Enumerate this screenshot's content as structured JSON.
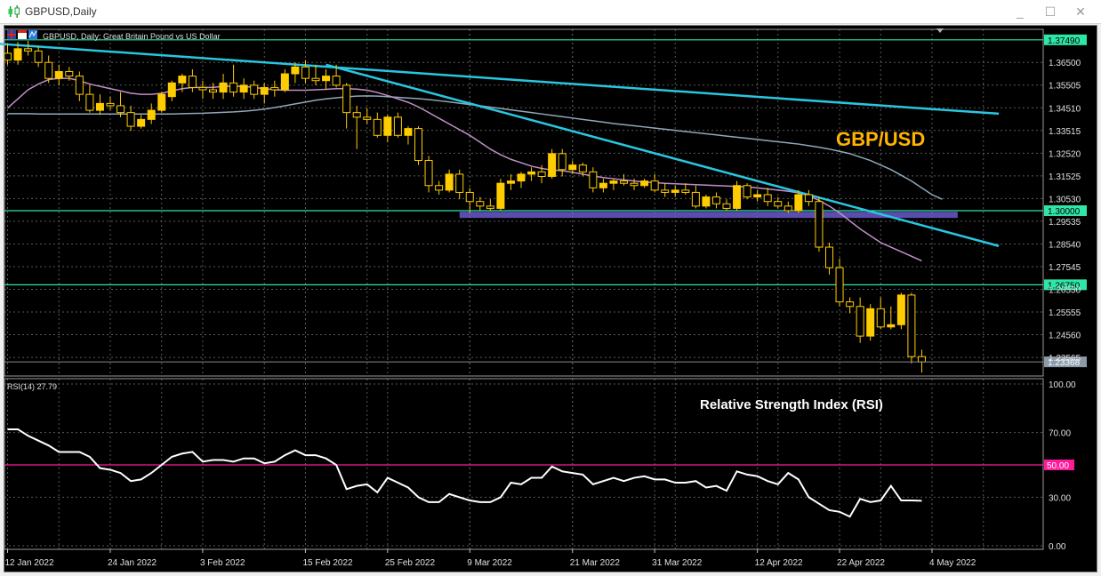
{
  "window": {
    "title": "GBPUSD,Daily",
    "controls": {
      "minimize": "_",
      "maximize": "☐",
      "close": "✕"
    }
  },
  "colors": {
    "background": "#000000",
    "grid": "#5a5a5a",
    "candle": "#ffcc00",
    "trendline": "#29c6e0",
    "hline": "#2ee6a6",
    "ma_fast": "#c090c8",
    "ma_slow": "#8fa9b8",
    "rsi_line": "#ffffff",
    "rsi_level": "#ff1a9a",
    "support_zone": "#6a5acd",
    "annotation": "#ffb400"
  },
  "chart_data": [
    {
      "type": "candlestick",
      "symbol": "GBPUSD",
      "timeframe": "Daily",
      "header": "GBPUSD, Daily:  Great Britain Pound vs US Dollar",
      "annotation": "GBP/USD",
      "y_ticks": [
        "1.36500",
        "1.35505",
        "1.34510",
        "1.33515",
        "1.32520",
        "1.31525",
        "1.30530",
        "1.29535",
        "1.28540",
        "1.27545",
        "1.26550",
        "1.25555",
        "1.24560",
        "1.23565"
      ],
      "ylim": [
        1.2275,
        1.3795
      ],
      "x_ticks": [
        {
          "i": 0,
          "label": "12 Jan 2022"
        },
        {
          "i": 10,
          "label": "24 Jan 2022"
        },
        {
          "i": 19,
          "label": "3 Feb 2022"
        },
        {
          "i": 29,
          "label": "15 Feb 2022"
        },
        {
          "i": 37,
          "label": "25 Feb 2022"
        },
        {
          "i": 45,
          "label": "9 Mar 2022"
        },
        {
          "i": 55,
          "label": "21 Mar 2022"
        },
        {
          "i": 63,
          "label": "31 Mar 2022"
        },
        {
          "i": 73,
          "label": "12 Apr 2022"
        },
        {
          "i": 81,
          "label": "22 Apr 2022"
        },
        {
          "i": 90,
          "label": "4 May 2022"
        }
      ],
      "ohlc": [
        [
          1.369,
          1.373,
          1.364,
          1.366
        ],
        [
          1.366,
          1.374,
          1.364,
          1.371
        ],
        [
          1.371,
          1.3745,
          1.368,
          1.37
        ],
        [
          1.37,
          1.372,
          1.363,
          1.365
        ],
        [
          1.365,
          1.368,
          1.356,
          1.358
        ],
        [
          1.358,
          1.364,
          1.355,
          1.361
        ],
        [
          1.361,
          1.363,
          1.357,
          1.359
        ],
        [
          1.359,
          1.361,
          1.348,
          1.351
        ],
        [
          1.351,
          1.355,
          1.343,
          1.344
        ],
        [
          1.344,
          1.351,
          1.342,
          1.347
        ],
        [
          1.347,
          1.35,
          1.344,
          1.346
        ],
        [
          1.346,
          1.352,
          1.341,
          1.343
        ],
        [
          1.343,
          1.346,
          1.335,
          1.337
        ],
        [
          1.337,
          1.342,
          1.336,
          1.34
        ],
        [
          1.34,
          1.347,
          1.338,
          1.344
        ],
        [
          1.344,
          1.352,
          1.343,
          1.351
        ],
        [
          1.35,
          1.357,
          1.348,
          1.356
        ],
        [
          1.356,
          1.36,
          1.352,
          1.359
        ],
        [
          1.359,
          1.362,
          1.352,
          1.354
        ],
        [
          1.354,
          1.357,
          1.349,
          1.353
        ],
        [
          1.353,
          1.356,
          1.349,
          1.352
        ],
        [
          1.352,
          1.36,
          1.349,
          1.356
        ],
        [
          1.356,
          1.364,
          1.35,
          1.352
        ],
        [
          1.352,
          1.358,
          1.349,
          1.355
        ],
        [
          1.355,
          1.357,
          1.349,
          1.351
        ],
        [
          1.351,
          1.356,
          1.347,
          1.354
        ],
        [
          1.354,
          1.357,
          1.35,
          1.353
        ],
        [
          1.353,
          1.362,
          1.352,
          1.36
        ],
        [
          1.36,
          1.365,
          1.356,
          1.363
        ],
        [
          1.363,
          1.366,
          1.356,
          1.358
        ],
        [
          1.358,
          1.364,
          1.355,
          1.357
        ],
        [
          1.357,
          1.362,
          1.353,
          1.359
        ],
        [
          1.359,
          1.364,
          1.354,
          1.355
        ],
        [
          1.355,
          1.356,
          1.336,
          1.343
        ],
        [
          1.343,
          1.346,
          1.327,
          1.341
        ],
        [
          1.341,
          1.345,
          1.338,
          1.34
        ],
        [
          1.34,
          1.343,
          1.332,
          1.333
        ],
        [
          1.333,
          1.342,
          1.33,
          1.341
        ],
        [
          1.341,
          1.343,
          1.332,
          1.333
        ],
        [
          1.333,
          1.337,
          1.329,
          1.336
        ],
        [
          1.336,
          1.337,
          1.32,
          1.322
        ],
        [
          1.322,
          1.324,
          1.308,
          1.311
        ],
        [
          1.311,
          1.313,
          1.307,
          1.309
        ],
        [
          1.309,
          1.318,
          1.308,
          1.316
        ],
        [
          1.316,
          1.318,
          1.305,
          1.308
        ],
        [
          1.308,
          1.31,
          1.299,
          1.304
        ],
        [
          1.304,
          1.306,
          1.3,
          1.302
        ],
        [
          1.302,
          1.305,
          1.3,
          1.301
        ],
        [
          1.301,
          1.314,
          1.3,
          1.312
        ],
        [
          1.312,
          1.316,
          1.309,
          1.313
        ],
        [
          1.313,
          1.317,
          1.31,
          1.316
        ],
        [
          1.316,
          1.319,
          1.313,
          1.317
        ],
        [
          1.317,
          1.32,
          1.312,
          1.315
        ],
        [
          1.315,
          1.327,
          1.314,
          1.325
        ],
        [
          1.325,
          1.327,
          1.315,
          1.318
        ],
        [
          1.318,
          1.322,
          1.316,
          1.32
        ],
        [
          1.32,
          1.321,
          1.315,
          1.317
        ],
        [
          1.317,
          1.319,
          1.308,
          1.31
        ],
        [
          1.31,
          1.314,
          1.308,
          1.312
        ],
        [
          1.312,
          1.314,
          1.309,
          1.313
        ],
        [
          1.313,
          1.316,
          1.311,
          1.312
        ],
        [
          1.312,
          1.314,
          1.309,
          1.311
        ],
        [
          1.311,
          1.314,
          1.31,
          1.313
        ],
        [
          1.313,
          1.316,
          1.308,
          1.309
        ],
        [
          1.309,
          1.312,
          1.306,
          1.308
        ],
        [
          1.308,
          1.311,
          1.306,
          1.309
        ],
        [
          1.309,
          1.312,
          1.307,
          1.308
        ],
        [
          1.308,
          1.311,
          1.301,
          1.302
        ],
        [
          1.302,
          1.307,
          1.301,
          1.306
        ],
        [
          1.306,
          1.308,
          1.301,
          1.303
        ],
        [
          1.303,
          1.305,
          1.3,
          1.301
        ],
        [
          1.301,
          1.313,
          1.3,
          1.311
        ],
        [
          1.311,
          1.312,
          1.305,
          1.306
        ],
        [
          1.306,
          1.309,
          1.304,
          1.307
        ],
        [
          1.307,
          1.31,
          1.302,
          1.304
        ],
        [
          1.304,
          1.306,
          1.301,
          1.302
        ],
        [
          1.302,
          1.304,
          1.299,
          1.3
        ],
        [
          1.3,
          1.309,
          1.299,
          1.307
        ],
        [
          1.307,
          1.309,
          1.302,
          1.304
        ],
        [
          1.304,
          1.306,
          1.282,
          1.284
        ],
        [
          1.284,
          1.286,
          1.272,
          1.275
        ],
        [
          1.275,
          1.279,
          1.258,
          1.26
        ],
        [
          1.26,
          1.262,
          1.255,
          1.258
        ],
        [
          1.258,
          1.262,
          1.242,
          1.245
        ],
        [
          1.245,
          1.259,
          1.243,
          1.257
        ],
        [
          1.257,
          1.262,
          1.248,
          1.249
        ],
        [
          1.249,
          1.258,
          1.248,
          1.25
        ],
        [
          1.25,
          1.264,
          1.248,
          1.263
        ],
        [
          1.263,
          1.264,
          1.233,
          1.236
        ],
        [
          1.236,
          1.239,
          1.229,
          1.2337
        ]
      ],
      "ma_fast": [
        1.345,
        1.349,
        1.353,
        1.3555,
        1.3575,
        1.358,
        1.358,
        1.357,
        1.3555,
        1.3545,
        1.3535,
        1.3525,
        1.3515,
        1.351,
        1.351,
        1.3515,
        1.3525,
        1.3535,
        1.354,
        1.354,
        1.354,
        1.3545,
        1.3545,
        1.3545,
        1.354,
        1.3535,
        1.353,
        1.3528,
        1.3528,
        1.3528,
        1.353,
        1.3532,
        1.3535,
        1.3535,
        1.3533,
        1.3528,
        1.3518,
        1.3505,
        1.349,
        1.3475,
        1.3455,
        1.343,
        1.3405,
        1.338,
        1.3355,
        1.333,
        1.33,
        1.327,
        1.3245,
        1.3225,
        1.321,
        1.3195,
        1.3185,
        1.3178,
        1.3175,
        1.3168,
        1.316,
        1.3152,
        1.3145,
        1.314,
        1.3135,
        1.313,
        1.3125,
        1.3123,
        1.312,
        1.3118,
        1.3116,
        1.3114,
        1.3112,
        1.311,
        1.3108,
        1.3106,
        1.3104,
        1.31,
        1.3095,
        1.309,
        1.3085,
        1.3078,
        1.3065,
        1.3045,
        1.302,
        1.299,
        1.2955,
        1.292,
        1.289,
        1.286,
        1.284,
        1.282,
        1.28,
        1.278
      ],
      "ma_slow": [
        1.3425,
        1.3425,
        1.3425,
        1.3424,
        1.3424,
        1.3424,
        1.3424,
        1.3424,
        1.3424,
        1.3424,
        1.3424,
        1.3424,
        1.3424,
        1.3424,
        1.3424,
        1.3424,
        1.3424,
        1.3425,
        1.3426,
        1.3427,
        1.3429,
        1.3431,
        1.3433,
        1.3436,
        1.344,
        1.3445,
        1.3452,
        1.346,
        1.3468,
        1.3476,
        1.3484,
        1.349,
        1.3495,
        1.3499,
        1.3502,
        1.3503,
        1.3502,
        1.35,
        1.3497,
        1.3494,
        1.3491,
        1.3487,
        1.3482,
        1.3477,
        1.3471,
        1.3465,
        1.346,
        1.3454,
        1.3448,
        1.3442,
        1.3436,
        1.343,
        1.3424,
        1.3418,
        1.3412,
        1.3406,
        1.34,
        1.3394,
        1.3388,
        1.3382,
        1.3377,
        1.3372,
        1.3367,
        1.3362,
        1.3357,
        1.3352,
        1.3347,
        1.3342,
        1.3337,
        1.3332,
        1.3327,
        1.3322,
        1.3317,
        1.3312,
        1.3307,
        1.3302,
        1.3297,
        1.3292,
        1.3285,
        1.3278,
        1.327,
        1.326,
        1.325,
        1.3235,
        1.322,
        1.32,
        1.318,
        1.3155,
        1.313,
        1.31,
        1.307,
        1.305
      ],
      "trendlines": [
        {
          "x1": -1,
          "y1": 1.3732,
          "x2": 96.5,
          "y2": 1.3425
        },
        {
          "x1": 31,
          "y1": 1.364,
          "x2": 96.5,
          "y2": 1.2845
        }
      ],
      "horizontal_lines": [
        {
          "value": 1.3749,
          "label": "1.37490"
        },
        {
          "value": 1.3,
          "label": "1.30000"
        },
        {
          "value": 1.2675,
          "label": "1.26750"
        }
      ],
      "support_zone": {
        "x_start": 44,
        "x_end": 92.5,
        "y_top": 1.2995,
        "y_bottom": 1.2968
      },
      "current_price": {
        "value": 1.2337,
        "label": "1.23368"
      },
      "grid": true
    },
    {
      "type": "line",
      "title": "RSI(14) 27.79",
      "annotation": "Relative Strength Index (RSI)",
      "ylim": [
        0,
        100
      ],
      "y_ticks": [
        "100.00",
        "70.00",
        "30.00",
        "0.00"
      ],
      "level": {
        "value": 50,
        "label": "50.00"
      },
      "values": [
        72,
        72,
        68,
        65,
        62,
        58,
        58,
        58,
        55,
        48,
        47,
        45,
        40,
        41,
        45,
        50,
        55,
        57,
        58,
        52,
        53,
        53,
        52,
        54,
        54,
        51,
        52,
        56,
        59,
        56,
        56,
        54,
        50,
        35,
        37,
        38,
        33,
        42,
        39,
        36,
        30,
        27,
        27,
        32,
        30,
        28,
        27,
        27,
        30,
        39,
        38,
        42,
        42,
        49,
        46,
        45,
        44,
        38,
        40,
        42,
        40,
        42,
        43,
        41,
        41,
        39,
        39,
        40,
        36,
        37,
        34,
        46,
        44,
        43,
        40,
        38,
        45,
        41,
        30,
        26,
        22,
        21,
        18,
        29,
        27,
        28,
        37,
        28,
        28,
        27.79
      ]
    }
  ]
}
